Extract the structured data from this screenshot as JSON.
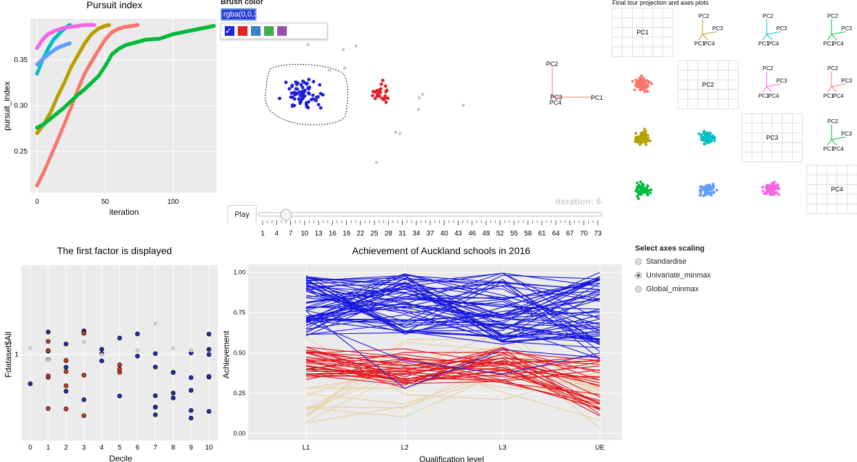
{
  "brush": {
    "label": "Brush color",
    "value": "rgba(0,0,2",
    "swatches": [
      {
        "name": "blue",
        "color": "#1f1fe0",
        "checked": true
      },
      {
        "name": "red",
        "color": "#e8202a",
        "checked": false
      },
      {
        "name": "steelblue",
        "color": "#3c82c4",
        "checked": false
      },
      {
        "name": "green",
        "color": "#3ab04a",
        "checked": false
      },
      {
        "name": "purple",
        "color": "#9a4fa8",
        "checked": false
      }
    ]
  },
  "tour": {
    "iteration_label": "iteration: 6",
    "play_label": "Play",
    "slider_ticks": [
      "1",
      "4",
      "7",
      "10",
      "13",
      "16",
      "19",
      "22",
      "25",
      "28",
      "31",
      "34",
      "37",
      "40",
      "43",
      "46",
      "49",
      "52",
      "55",
      "58",
      "61",
      "64",
      "67",
      "70",
      "73"
    ],
    "slider_value": 6,
    "axes_labels": [
      "PC2",
      "PC3",
      "PC4",
      "PC1"
    ]
  },
  "grid_panel": {
    "title": "Final tour projection and axes plots",
    "diag_labels": [
      "PC1",
      "PC2",
      "PC3",
      "PC4"
    ]
  },
  "radio": {
    "title": "Select axes scaling",
    "options": [
      {
        "label": "Standardise",
        "selected": false
      },
      {
        "label": "Univariate_minmax",
        "selected": true
      },
      {
        "label": "Global_minmax",
        "selected": false
      }
    ]
  },
  "chart_data": [
    {
      "type": "scatter",
      "title": "Pursuit index",
      "xlabel": "iteration",
      "ylabel": "pursuit_index",
      "xlim": [
        -5,
        132
      ],
      "ylim": [
        0.205,
        0.395
      ],
      "xticks": [
        {
          "v": 0,
          "t": "0"
        },
        {
          "v": 50,
          "t": "50"
        },
        {
          "v": 100,
          "t": "100"
        }
      ],
      "yticks": [
        {
          "v": 0.25,
          "t": "0.25"
        },
        {
          "v": 0.3,
          "t": "0.30"
        },
        {
          "v": 0.35,
          "t": "0.35"
        }
      ],
      "series": [
        {
          "color": "#f8766d",
          "points": [
            [
              0,
              0.213
            ],
            [
              5,
              0.228
            ],
            [
              10,
              0.245
            ],
            [
              15,
              0.262
            ],
            [
              20,
              0.28
            ],
            [
              25,
              0.298
            ],
            [
              30,
              0.318
            ],
            [
              35,
              0.335
            ],
            [
              40,
              0.348
            ],
            [
              45,
              0.36
            ],
            [
              50,
              0.372
            ],
            [
              55,
              0.38
            ],
            [
              60,
              0.384
            ],
            [
              65,
              0.386
            ],
            [
              70,
              0.387
            ],
            [
              74,
              0.388
            ]
          ]
        },
        {
          "color": "#b79f00",
          "points": [
            [
              0,
              0.27
            ],
            [
              5,
              0.28
            ],
            [
              10,
              0.293
            ],
            [
              15,
              0.31
            ],
            [
              20,
              0.325
            ],
            [
              25,
              0.342
            ],
            [
              30,
              0.355
            ],
            [
              35,
              0.368
            ],
            [
              40,
              0.378
            ],
            [
              45,
              0.384
            ],
            [
              50,
              0.387
            ],
            [
              53,
              0.388
            ]
          ]
        },
        {
          "color": "#00ba38",
          "points": [
            [
              0,
              0.276
            ],
            [
              5,
              0.28
            ],
            [
              10,
              0.286
            ],
            [
              15,
              0.292
            ],
            [
              20,
              0.298
            ],
            [
              25,
              0.305
            ],
            [
              30,
              0.312
            ],
            [
              35,
              0.318
            ],
            [
              40,
              0.325
            ],
            [
              45,
              0.332
            ],
            [
              50,
              0.343
            ],
            [
              55,
              0.356
            ],
            [
              60,
              0.362
            ],
            [
              65,
              0.366
            ],
            [
              70,
              0.368
            ],
            [
              80,
              0.372
            ],
            [
              90,
              0.373
            ],
            [
              100,
              0.378
            ],
            [
              110,
              0.381
            ],
            [
              120,
              0.384
            ],
            [
              130,
              0.387
            ]
          ]
        },
        {
          "color": "#00bfc4",
          "points": [
            [
              0,
              0.335
            ],
            [
              4,
              0.35
            ],
            [
              8,
              0.362
            ],
            [
              12,
              0.372
            ],
            [
              16,
              0.378
            ],
            [
              20,
              0.384
            ],
            [
              24,
              0.388
            ]
          ]
        },
        {
          "color": "#619cff",
          "points": [
            [
              0,
              0.345
            ],
            [
              5,
              0.352
            ],
            [
              10,
              0.358
            ],
            [
              15,
              0.363
            ],
            [
              20,
              0.366
            ],
            [
              24,
              0.368
            ]
          ]
        },
        {
          "color": "#f564e3",
          "points": [
            [
              0,
              0.363
            ],
            [
              4,
              0.372
            ],
            [
              8,
              0.378
            ],
            [
              12,
              0.381
            ],
            [
              16,
              0.383
            ],
            [
              20,
              0.385
            ],
            [
              25,
              0.386
            ],
            [
              30,
              0.387
            ],
            [
              35,
              0.388
            ],
            [
              42,
              0.388
            ]
          ]
        }
      ]
    },
    {
      "type": "scatter",
      "title": "The first factor is displayed",
      "xlabel": "Decile",
      "ylabel": "Fdataset$All",
      "xlim": [
        -0.5,
        10.5
      ],
      "xticks": [
        {
          "v": 0,
          "t": "0"
        },
        {
          "v": 1,
          "t": "1"
        },
        {
          "v": 2,
          "t": "2"
        },
        {
          "v": 3,
          "t": "3"
        },
        {
          "v": 4,
          "t": "4"
        },
        {
          "v": 5,
          "t": "5"
        },
        {
          "v": 6,
          "t": "6"
        },
        {
          "v": 7,
          "t": "7"
        },
        {
          "v": 8,
          "t": "8"
        },
        {
          "v": 9,
          "t": "9"
        },
        {
          "v": 10,
          "t": "10"
        }
      ],
      "yticks": [
        {
          "v": 1,
          "t": "1"
        }
      ]
    },
    {
      "type": "line",
      "title": "Achievement of Auckland schools in 2016",
      "xlabel": "Qualification level",
      "ylabel": "Achievement",
      "categories": [
        "L1",
        "L2",
        "L3",
        "UE"
      ],
      "ylim": [
        -0.04,
        1.05
      ],
      "yticks": [
        {
          "v": 0,
          "t": "0.00"
        },
        {
          "v": 0.25,
          "t": "0.25"
        },
        {
          "v": 0.5,
          "t": "0.50"
        },
        {
          "v": 0.75,
          "t": "0.75"
        },
        {
          "v": 1,
          "t": "1.00"
        }
      ]
    }
  ]
}
